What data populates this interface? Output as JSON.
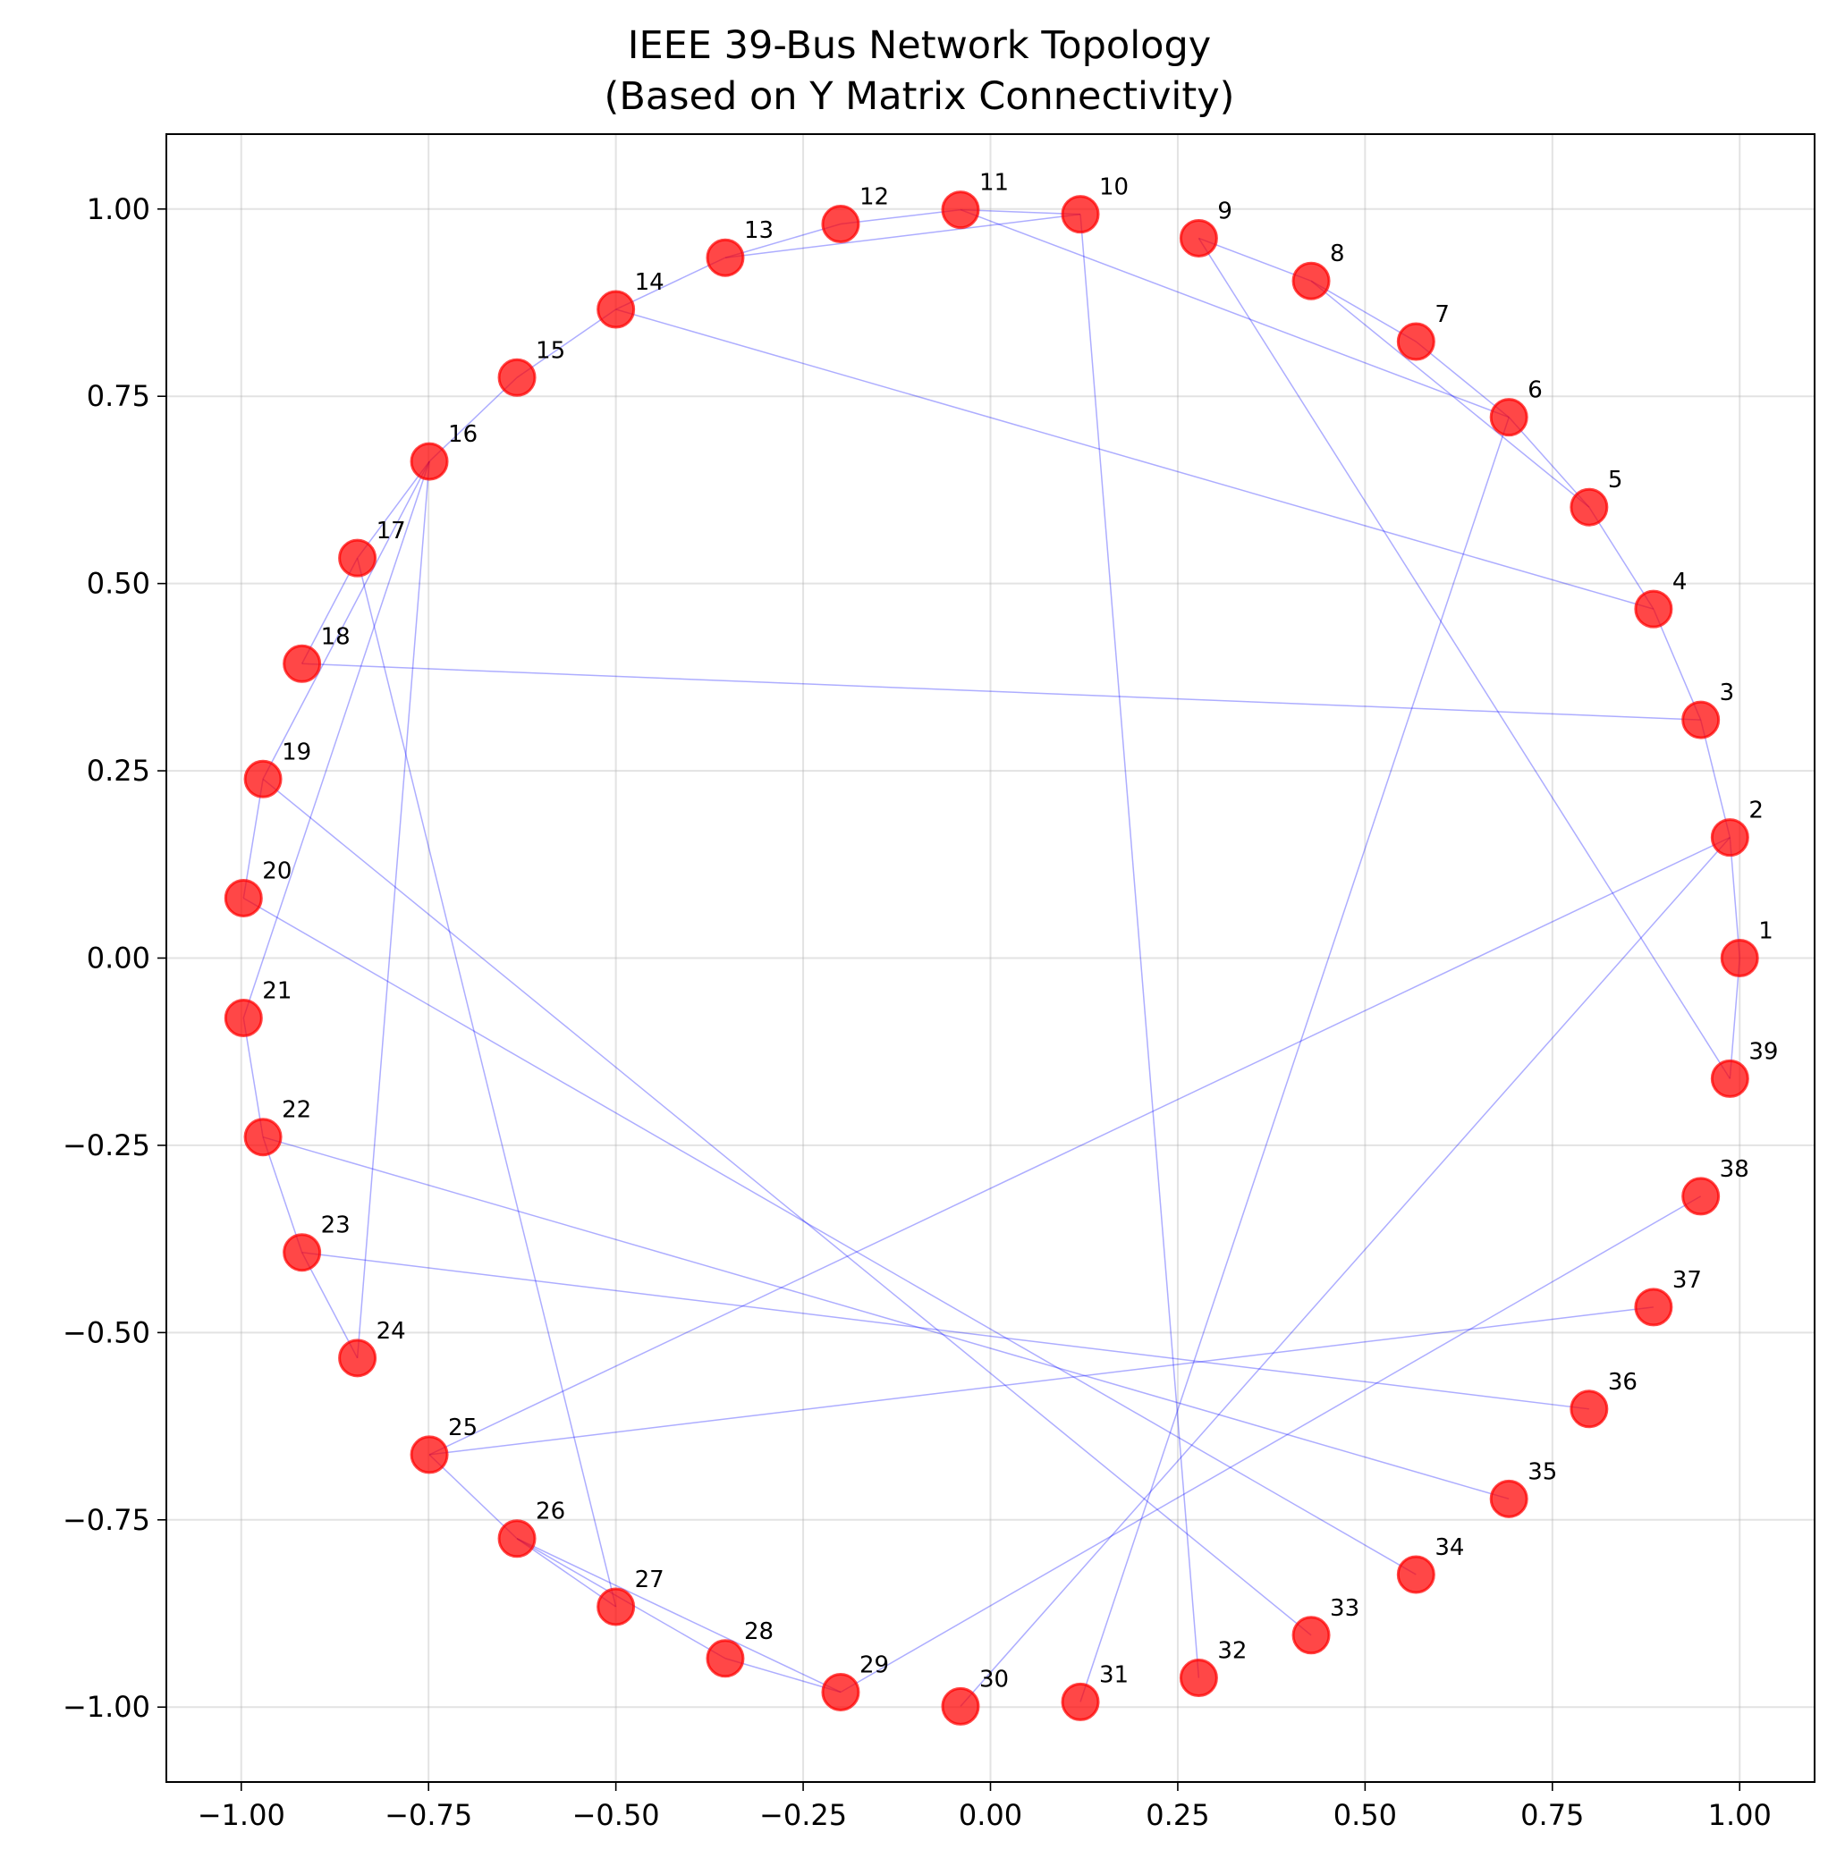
{
  "chart_data": {
    "type": "scatter",
    "title_lines": [
      "IEEE 39-Bus Network Topology",
      "(Based on Y Matrix Connectivity)"
    ],
    "xlabel": "",
    "ylabel": "",
    "xlim": [
      -1.1,
      1.1
    ],
    "ylim": [
      -1.1,
      1.1
    ],
    "grid": true,
    "x_ticks": [
      {
        "value": -1.0,
        "label": "−1.00"
      },
      {
        "value": -0.75,
        "label": "−0.75"
      },
      {
        "value": -0.5,
        "label": "−0.50"
      },
      {
        "value": -0.25,
        "label": "−0.25"
      },
      {
        "value": 0.0,
        "label": "0.00"
      },
      {
        "value": 0.25,
        "label": "0.25"
      },
      {
        "value": 0.5,
        "label": "0.50"
      },
      {
        "value": 0.75,
        "label": "0.75"
      },
      {
        "value": 1.0,
        "label": "1.00"
      }
    ],
    "y_ticks": [
      {
        "value": 1.0,
        "label": "1.00"
      },
      {
        "value": 0.75,
        "label": "0.75"
      },
      {
        "value": 0.5,
        "label": "0.50"
      },
      {
        "value": 0.25,
        "label": "0.25"
      },
      {
        "value": 0.0,
        "label": "0.00"
      },
      {
        "value": -0.25,
        "label": "−0.25"
      },
      {
        "value": -0.5,
        "label": "−0.50"
      },
      {
        "value": -0.75,
        "label": "−0.75"
      },
      {
        "value": -1.0,
        "label": "−1.00"
      }
    ],
    "node_color": "#ff0000",
    "edge_color": "#0000ff",
    "nodes": [
      {
        "id": "1",
        "x": 1.0,
        "y": 0.0
      },
      {
        "id": "2",
        "x": 0.987,
        "y": 0.161
      },
      {
        "id": "3",
        "x": 0.948,
        "y": 0.318
      },
      {
        "id": "4",
        "x": 0.885,
        "y": 0.466
      },
      {
        "id": "5",
        "x": 0.799,
        "y": 0.602
      },
      {
        "id": "6",
        "x": 0.692,
        "y": 0.722
      },
      {
        "id": "7",
        "x": 0.568,
        "y": 0.823
      },
      {
        "id": "8",
        "x": 0.428,
        "y": 0.904
      },
      {
        "id": "9",
        "x": 0.278,
        "y": 0.961
      },
      {
        "id": "10",
        "x": 0.12,
        "y": 0.993
      },
      {
        "id": "11",
        "x": -0.04,
        "y": 0.999
      },
      {
        "id": "12",
        "x": -0.2,
        "y": 0.98
      },
      {
        "id": "13",
        "x": -0.354,
        "y": 0.935
      },
      {
        "id": "14",
        "x": -0.5,
        "y": 0.866
      },
      {
        "id": "15",
        "x": -0.632,
        "y": 0.775
      },
      {
        "id": "16",
        "x": -0.749,
        "y": 0.663
      },
      {
        "id": "17",
        "x": -0.845,
        "y": 0.534
      },
      {
        "id": "18",
        "x": -0.919,
        "y": 0.393
      },
      {
        "id": "19",
        "x": -0.971,
        "y": 0.239
      },
      {
        "id": "20",
        "x": -0.997,
        "y": 0.08
      },
      {
        "id": "21",
        "x": -0.997,
        "y": -0.08
      },
      {
        "id": "22",
        "x": -0.971,
        "y": -0.239
      },
      {
        "id": "23",
        "x": -0.919,
        "y": -0.393
      },
      {
        "id": "24",
        "x": -0.845,
        "y": -0.534
      },
      {
        "id": "25",
        "x": -0.749,
        "y": -0.663
      },
      {
        "id": "26",
        "x": -0.632,
        "y": -0.775
      },
      {
        "id": "27",
        "x": -0.5,
        "y": -0.866
      },
      {
        "id": "28",
        "x": -0.354,
        "y": -0.935
      },
      {
        "id": "29",
        "x": -0.2,
        "y": -0.98
      },
      {
        "id": "30",
        "x": -0.04,
        "y": -0.999
      },
      {
        "id": "31",
        "x": 0.12,
        "y": -0.993
      },
      {
        "id": "32",
        "x": 0.278,
        "y": -0.961
      },
      {
        "id": "33",
        "x": 0.428,
        "y": -0.904
      },
      {
        "id": "34",
        "x": 0.568,
        "y": -0.823
      },
      {
        "id": "35",
        "x": 0.692,
        "y": -0.722
      },
      {
        "id": "36",
        "x": 0.799,
        "y": -0.602
      },
      {
        "id": "37",
        "x": 0.885,
        "y": -0.466
      },
      {
        "id": "38",
        "x": 0.948,
        "y": -0.318
      },
      {
        "id": "39",
        "x": 0.987,
        "y": -0.161
      }
    ],
    "edges": [
      [
        "1",
        "2"
      ],
      [
        "1",
        "39"
      ],
      [
        "2",
        "3"
      ],
      [
        "2",
        "25"
      ],
      [
        "2",
        "30"
      ],
      [
        "3",
        "4"
      ],
      [
        "3",
        "18"
      ],
      [
        "4",
        "5"
      ],
      [
        "4",
        "14"
      ],
      [
        "5",
        "6"
      ],
      [
        "5",
        "8"
      ],
      [
        "6",
        "7"
      ],
      [
        "6",
        "11"
      ],
      [
        "6",
        "31"
      ],
      [
        "7",
        "8"
      ],
      [
        "8",
        "9"
      ],
      [
        "9",
        "39"
      ],
      [
        "10",
        "11"
      ],
      [
        "10",
        "13"
      ],
      [
        "10",
        "32"
      ],
      [
        "11",
        "12"
      ],
      [
        "12",
        "13"
      ],
      [
        "13",
        "14"
      ],
      [
        "14",
        "15"
      ],
      [
        "15",
        "16"
      ],
      [
        "16",
        "17"
      ],
      [
        "16",
        "19"
      ],
      [
        "16",
        "21"
      ],
      [
        "16",
        "24"
      ],
      [
        "17",
        "18"
      ],
      [
        "17",
        "27"
      ],
      [
        "19",
        "20"
      ],
      [
        "19",
        "33"
      ],
      [
        "20",
        "34"
      ],
      [
        "21",
        "22"
      ],
      [
        "22",
        "23"
      ],
      [
        "22",
        "35"
      ],
      [
        "23",
        "24"
      ],
      [
        "23",
        "36"
      ],
      [
        "25",
        "26"
      ],
      [
        "25",
        "37"
      ],
      [
        "26",
        "27"
      ],
      [
        "26",
        "28"
      ],
      [
        "26",
        "29"
      ],
      [
        "28",
        "29"
      ],
      [
        "29",
        "38"
      ]
    ]
  }
}
